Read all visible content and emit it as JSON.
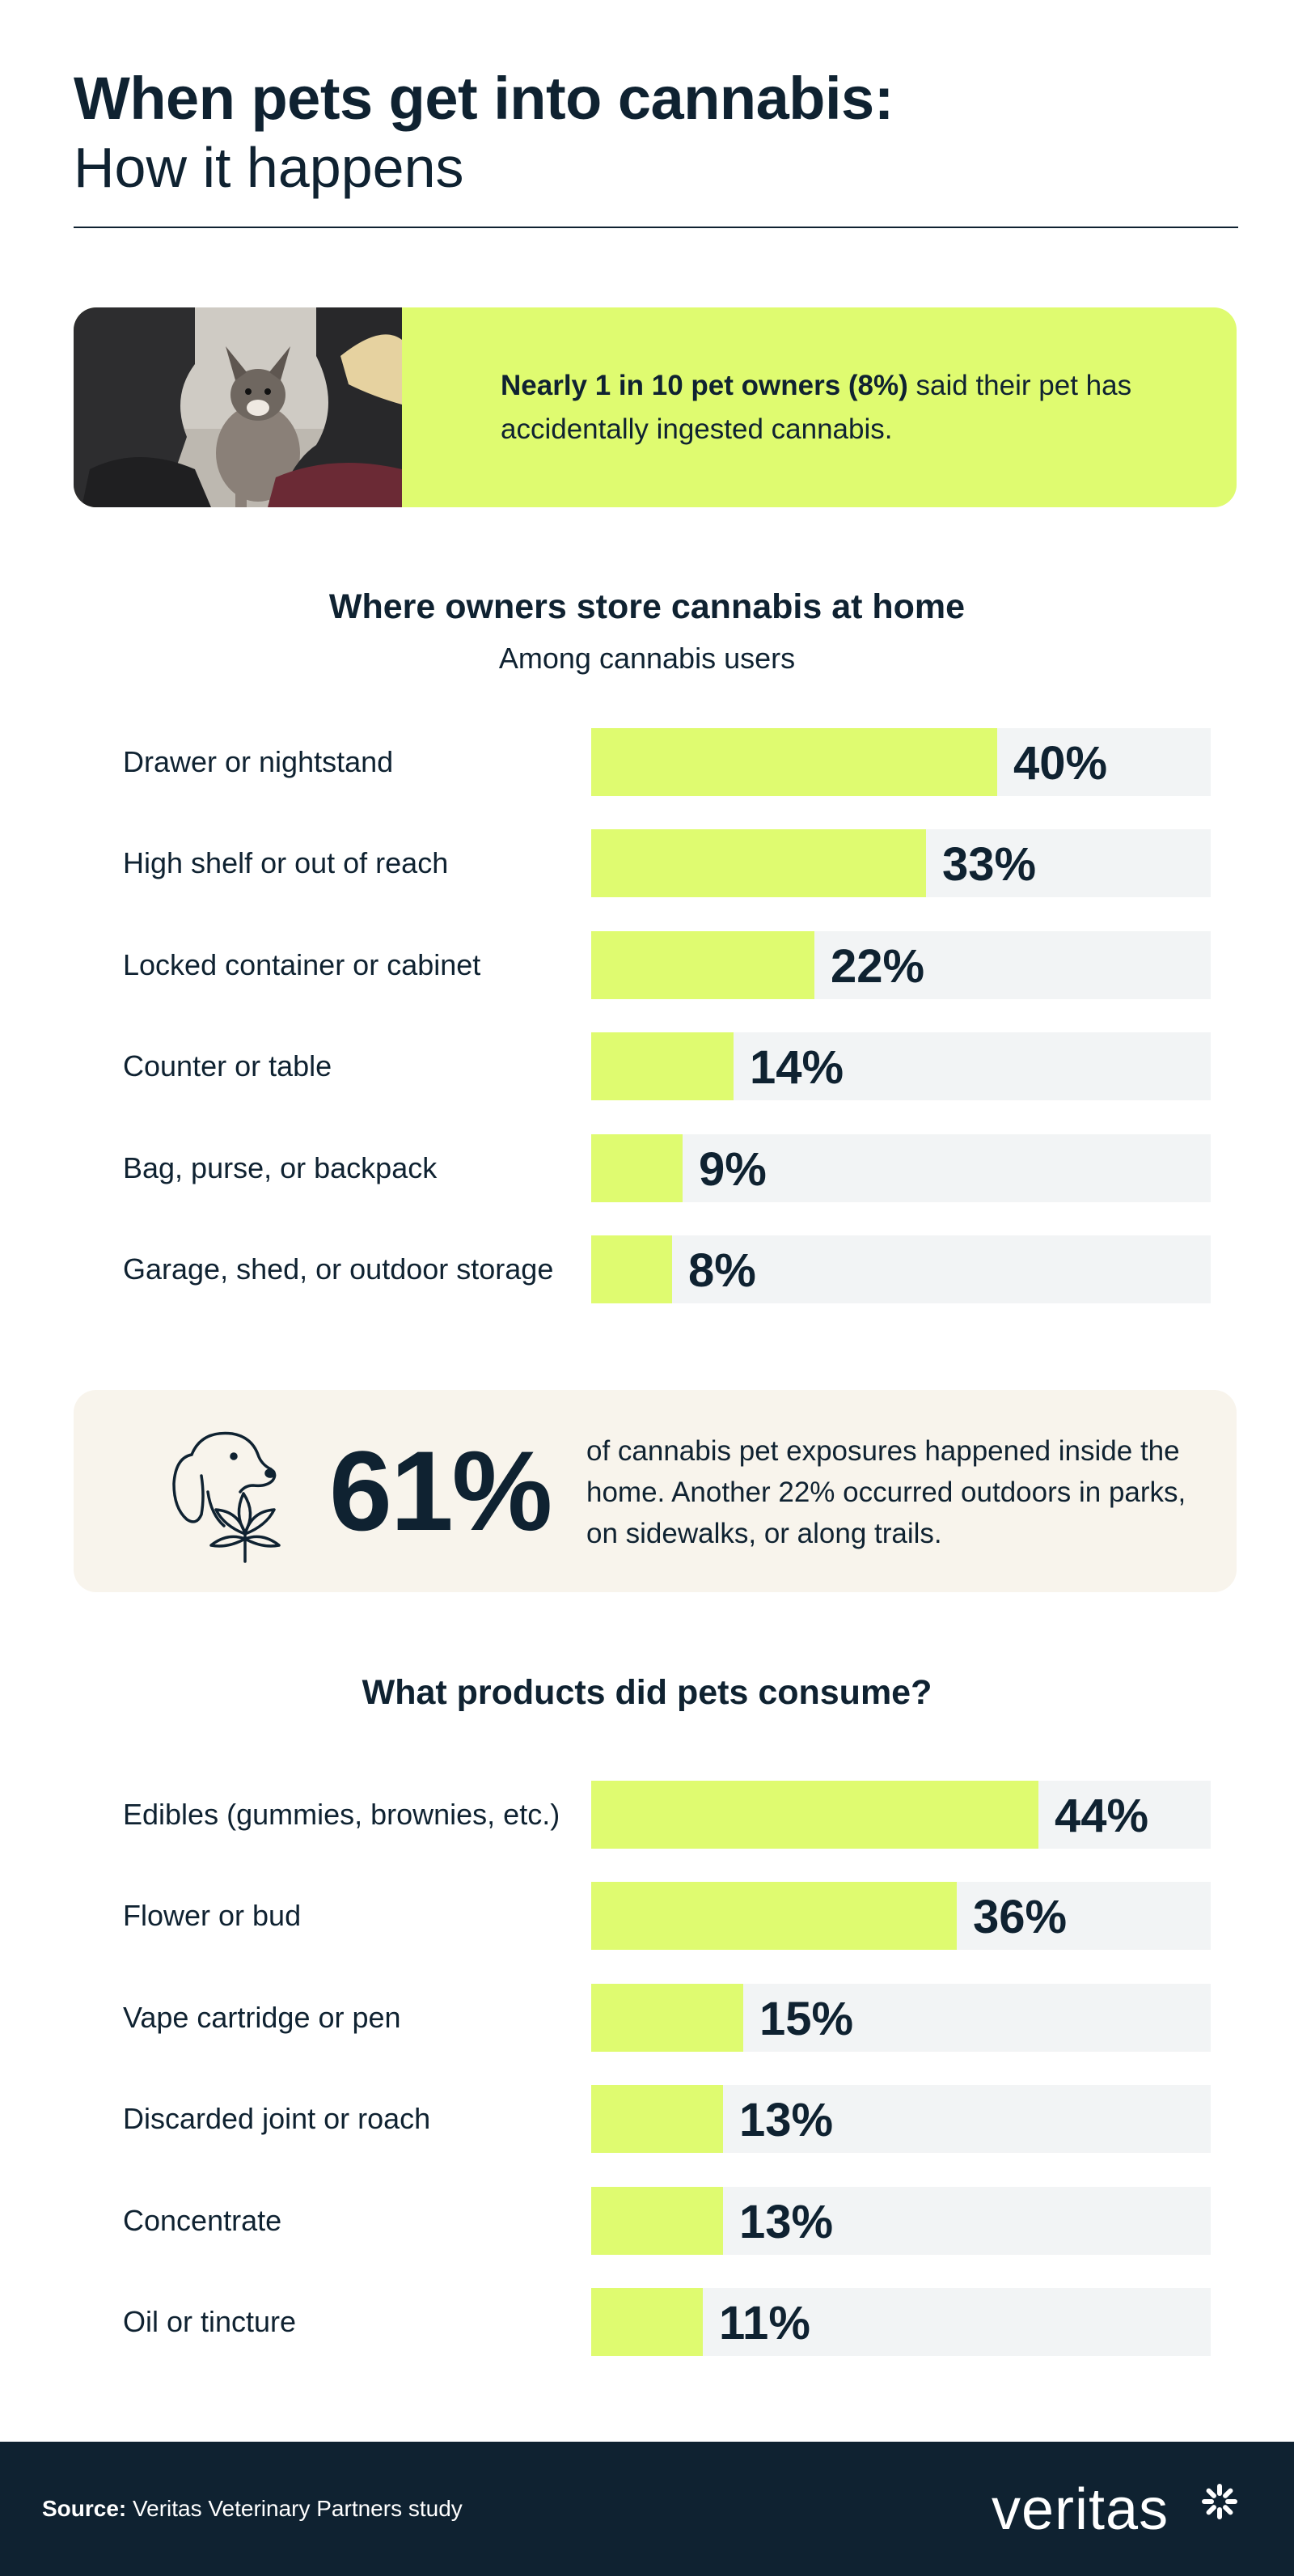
{
  "header": {
    "title_line1": "When pets get into cannabis:",
    "title_line2": "How it happens"
  },
  "hero": {
    "bold_text": "Nearly 1 in 10 pet owners (8%)",
    "rest_text": " said their pet has accidentally ingested cannabis."
  },
  "storage": {
    "title": "Where owners store cannabis at home",
    "subtitle": "Among cannabis users"
  },
  "stat": {
    "value": "61%",
    "text": "of cannabis pet exposures happened inside the home. Another 22% occurred outdoors in parks, on sidewalks, or along trails.",
    "icon": "dog-with-cannabis-leaf-icon"
  },
  "products": {
    "title": "What products did pets consume?"
  },
  "footer": {
    "source_label": "Source:",
    "source_text": " Veritas Veterinary Partners study",
    "logo": "veritas"
  },
  "colors": {
    "navy": "#0f2231",
    "lime": "#dffb70",
    "track": "#f2f4f5",
    "cream": "#f8f4ec"
  },
  "chart_data": [
    {
      "type": "bar",
      "orientation": "horizontal",
      "title": "Where owners store cannabis at home",
      "subtitle": "Among cannabis users",
      "categories": [
        "Drawer or nightstand",
        "High shelf or out of reach",
        "Locked container or cabinet",
        "Counter or table",
        "Bag, purse, or backpack",
        "Garage, shed, or outdoor storage"
      ],
      "values": [
        40,
        33,
        22,
        14,
        9,
        8
      ],
      "labels": [
        "40%",
        "33%",
        "22%",
        "14%",
        "9%",
        "8%"
      ],
      "xlim": [
        0,
        61
      ]
    },
    {
      "type": "bar",
      "orientation": "horizontal",
      "title": "What products did pets consume?",
      "categories": [
        "Edibles (gummies, brownies, etc.)",
        "Flower or bud",
        "Vape cartridge or pen",
        "Discarded joint or roach",
        "Concentrate",
        "Oil or tincture"
      ],
      "values": [
        44,
        36,
        15,
        13,
        13,
        11
      ],
      "labels": [
        "44%",
        "36%",
        "15%",
        "13%",
        "13%",
        "11%"
      ],
      "xlim": [
        0,
        61
      ]
    }
  ]
}
